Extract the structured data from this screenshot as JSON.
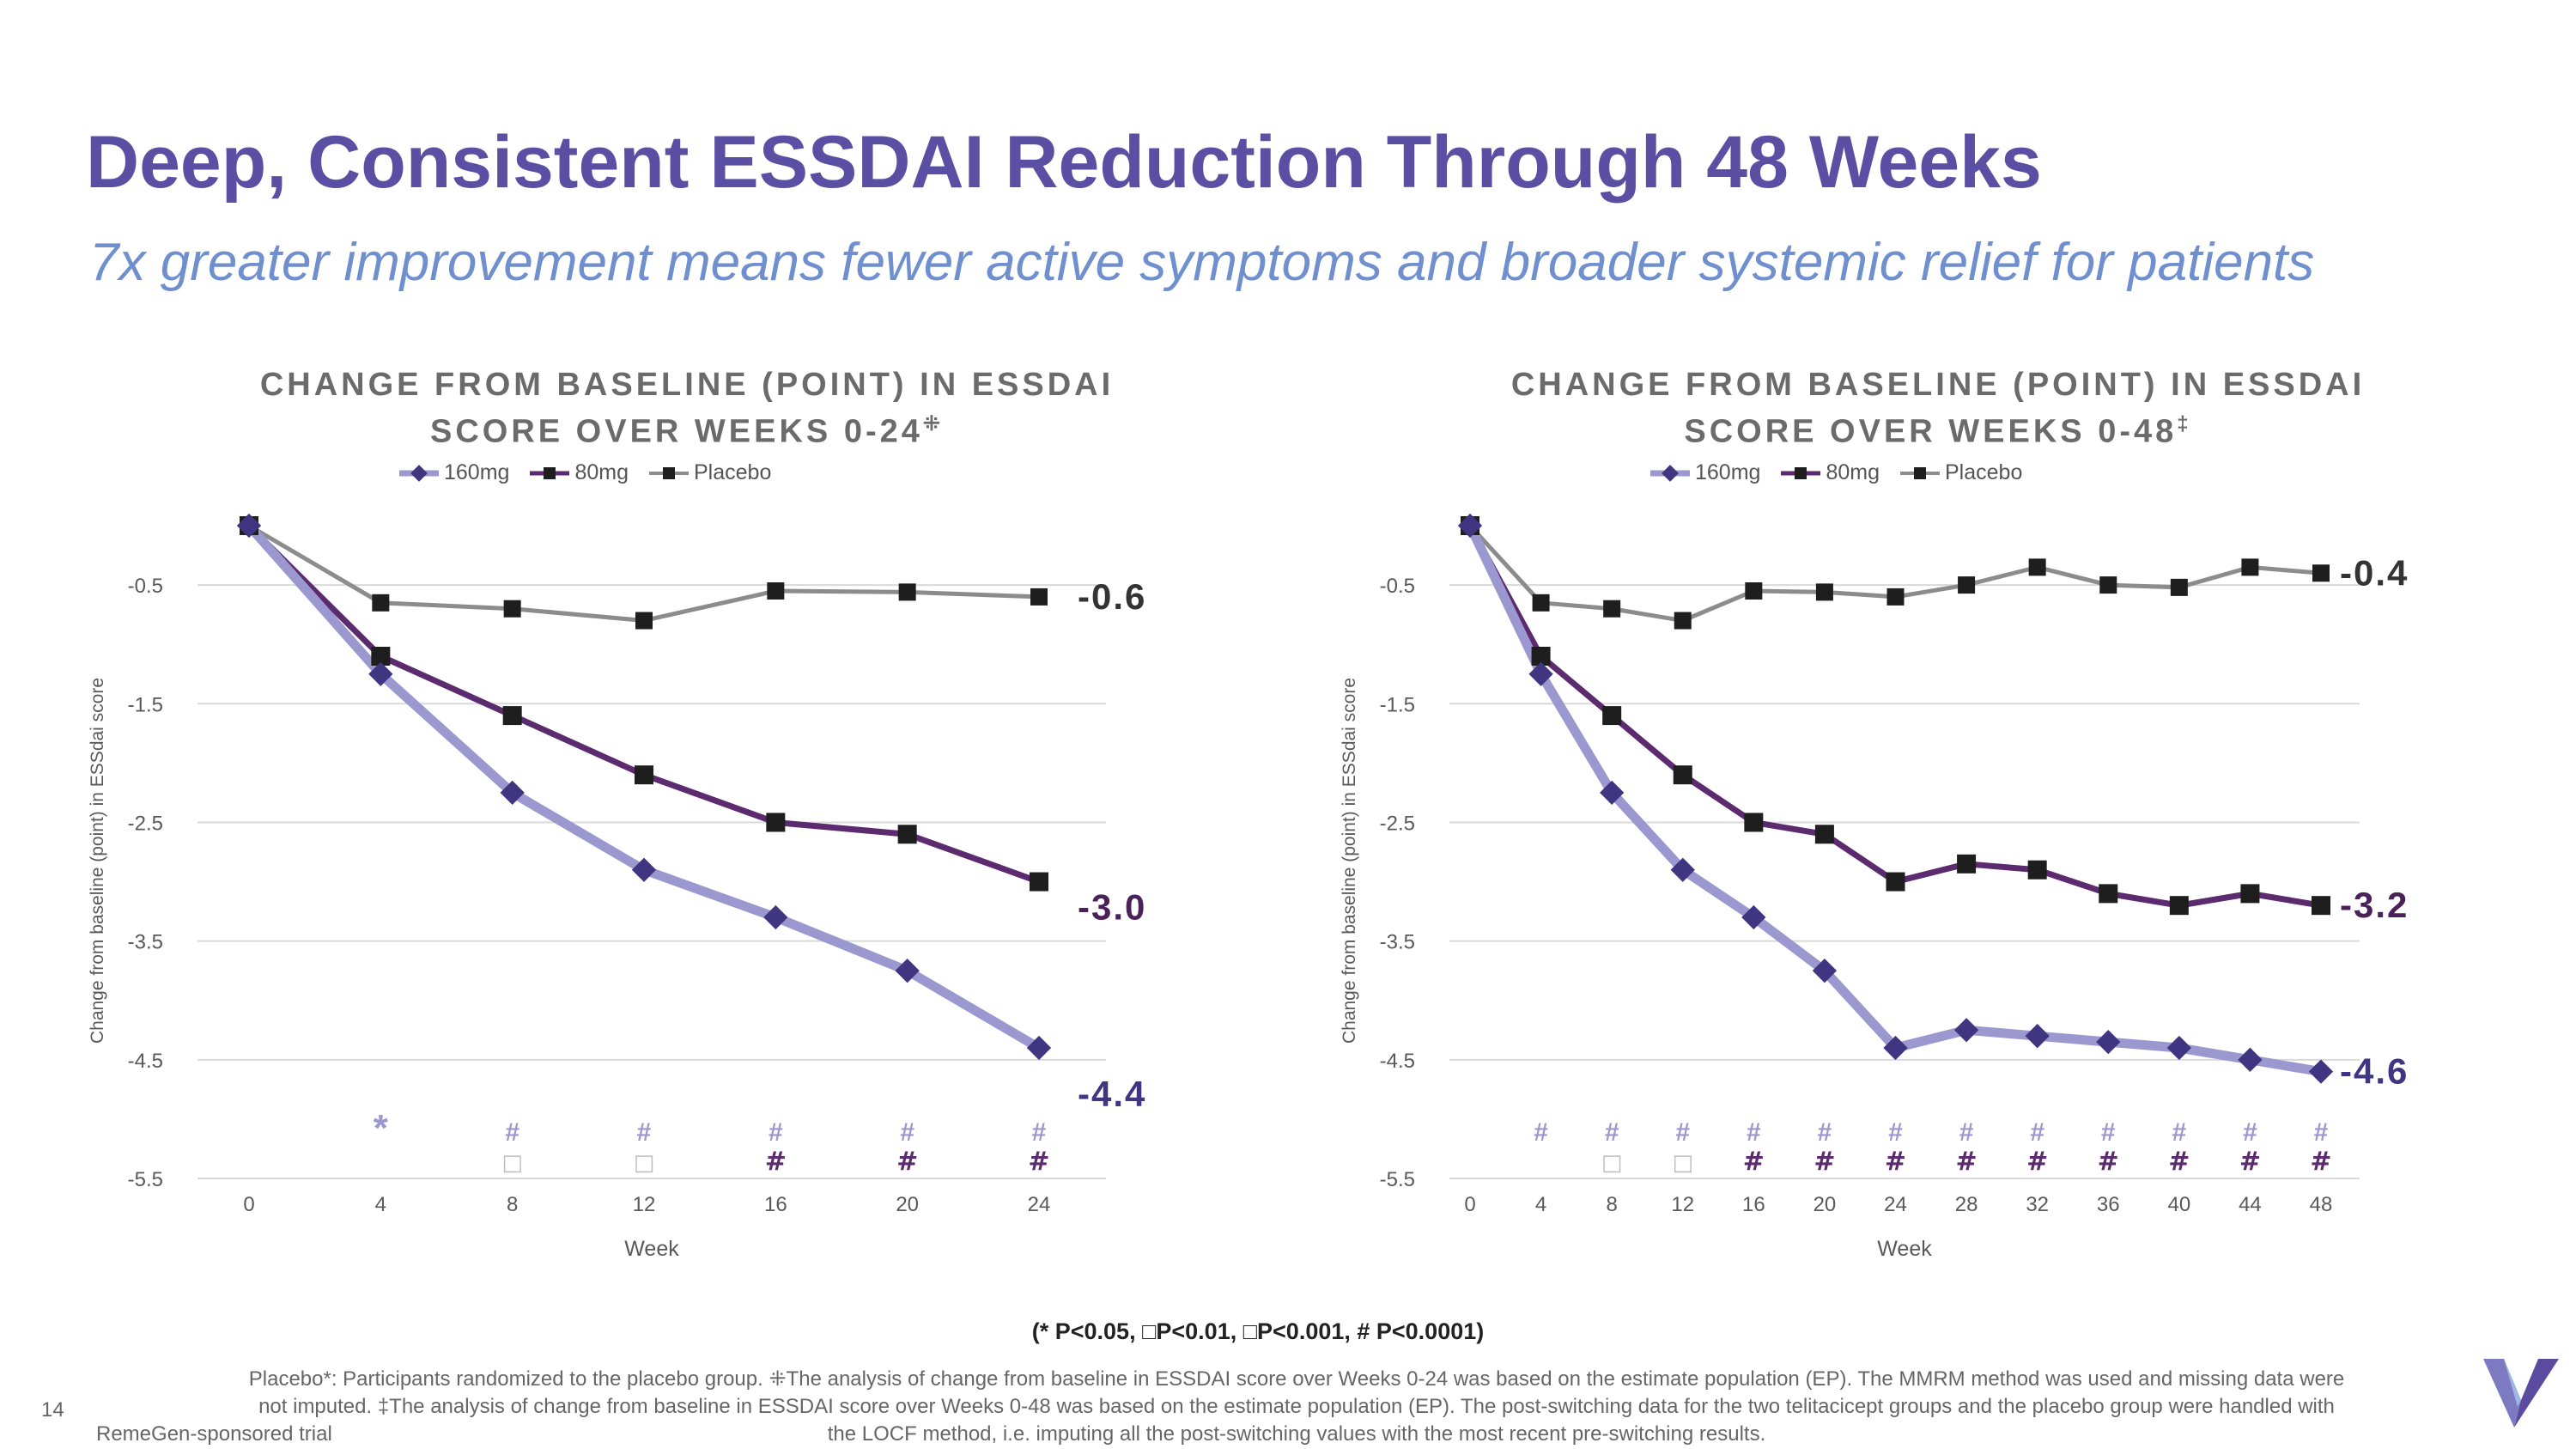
{
  "header": {
    "title": "Deep, Consistent ESSDAI Reduction Through 48 Weeks",
    "subtitle": "7x greater improvement means fewer active symptoms and broader systemic relief for patients"
  },
  "charts": {
    "left": {
      "title_line1": "CHANGE FROM BASELINE (POINT) IN ESSDAI",
      "title_line2": "SCORE OVER WEEKS 0-24",
      "title_mark": "⁜"
    },
    "right": {
      "title_line1": "CHANGE FROM BASELINE (POINT) IN ESSDAI",
      "title_line2": "SCORE OVER WEEKS 0-48",
      "title_mark": "‡"
    }
  },
  "legend": {
    "s160": "160mg",
    "s80": "80mg",
    "placebo": "Placebo"
  },
  "chart_data": [
    {
      "type": "line",
      "title": "CHANGE FROM BASELINE (POINT) IN ESSDAI SCORE OVER WEEKS 0-24",
      "xlabel": "Week",
      "ylabel": "Change from baseline (point) in ESSdai score",
      "ylim": [
        -5.5,
        0
      ],
      "yticks": [
        -0.5,
        -1.5,
        -2.5,
        -3.5,
        -4.5,
        -5.5
      ],
      "x": [
        0,
        4,
        8,
        12,
        16,
        20,
        24
      ],
      "series": [
        {
          "name": "Placebo",
          "values": [
            0,
            -0.65,
            -0.7,
            -0.8,
            -0.55,
            -0.56,
            -0.6
          ],
          "end_label": "-0.6"
        },
        {
          "name": "80mg",
          "values": [
            0,
            -1.1,
            -1.6,
            -2.1,
            -2.5,
            -2.6,
            -3.0
          ],
          "end_label": "-3.0"
        },
        {
          "name": "160mg",
          "values": [
            0,
            -1.25,
            -2.25,
            -2.9,
            -3.3,
            -3.75,
            -4.4
          ],
          "end_label": "-4.4"
        }
      ],
      "sig_row1": [
        "",
        "*",
        "#",
        "#",
        "#",
        "#",
        "#"
      ],
      "sig_row2": [
        "",
        "",
        "□",
        "□",
        "#",
        "#",
        "#"
      ]
    },
    {
      "type": "line",
      "title": "CHANGE FROM BASELINE (POINT) IN ESSDAI SCORE OVER WEEKS 0-48",
      "xlabel": "Week",
      "ylabel": "Change from baseline (point) in ESSdai score",
      "ylim": [
        -5.5,
        0
      ],
      "yticks": [
        -0.5,
        -1.5,
        -2.5,
        -3.5,
        -4.5,
        -5.5
      ],
      "x": [
        0,
        4,
        8,
        12,
        16,
        20,
        24,
        28,
        32,
        36,
        40,
        44,
        48
      ],
      "series": [
        {
          "name": "Placebo",
          "values": [
            0,
            -0.65,
            -0.7,
            -0.8,
            -0.55,
            -0.56,
            -0.6,
            -0.5,
            -0.35,
            -0.5,
            -0.52,
            -0.35,
            -0.4
          ],
          "end_label": "-0.4"
        },
        {
          "name": "80mg",
          "values": [
            0,
            -1.1,
            -1.6,
            -2.1,
            -2.5,
            -2.6,
            -3.0,
            -2.85,
            -2.9,
            -3.1,
            -3.2,
            -3.1,
            -3.2
          ],
          "end_label": "-3.2"
        },
        {
          "name": "160mg",
          "values": [
            0,
            -1.25,
            -2.25,
            -2.9,
            -3.3,
            -3.75,
            -4.4,
            -4.25,
            -4.3,
            -4.35,
            -4.4,
            -4.5,
            -4.6
          ],
          "end_label": "-4.6"
        }
      ],
      "sig_row1": [
        "",
        "#",
        "#",
        "#",
        "#",
        "#",
        "#",
        "#",
        "#",
        "#",
        "#",
        "#",
        "#"
      ],
      "sig_row2": [
        "",
        "",
        "□",
        "□",
        "#",
        "#",
        "#",
        "#",
        "#",
        "#",
        "#",
        "#",
        "#"
      ]
    }
  ],
  "significance_note": "(* P<0.05,  □P<0.01,  □P<0.001, # P<0.0001)",
  "footnote": {
    "line1": "Placebo*: Participants randomized to the placebo group. ⁜The analysis of change from baseline in ESSDAI score over Weeks 0-24 was based on the estimate population (EP). The MMRM method was used and missing data were",
    "line2": "not imputed. ‡The analysis of change from baseline in ESSDAI score over Weeks 0-48 was based on the estimate population (EP). The post-switching data for the two telitacicept groups and the placebo group were handled with",
    "line3": "the LOCF method, i.e. imputing all the post-switching values with the most recent pre-switching results."
  },
  "page_number": "14",
  "sponsor": "RemeGen-sponsored trial",
  "colors": {
    "s160": "#9b97cf",
    "s160_marker": "#3f3580",
    "s80": "#5c2a6e",
    "placebo": "#8c8c8c",
    "marker": "#1e1e1e",
    "sig1": "#9b97cf",
    "sig2": "#5c2a6e",
    "title": "#5a4fa2"
  }
}
